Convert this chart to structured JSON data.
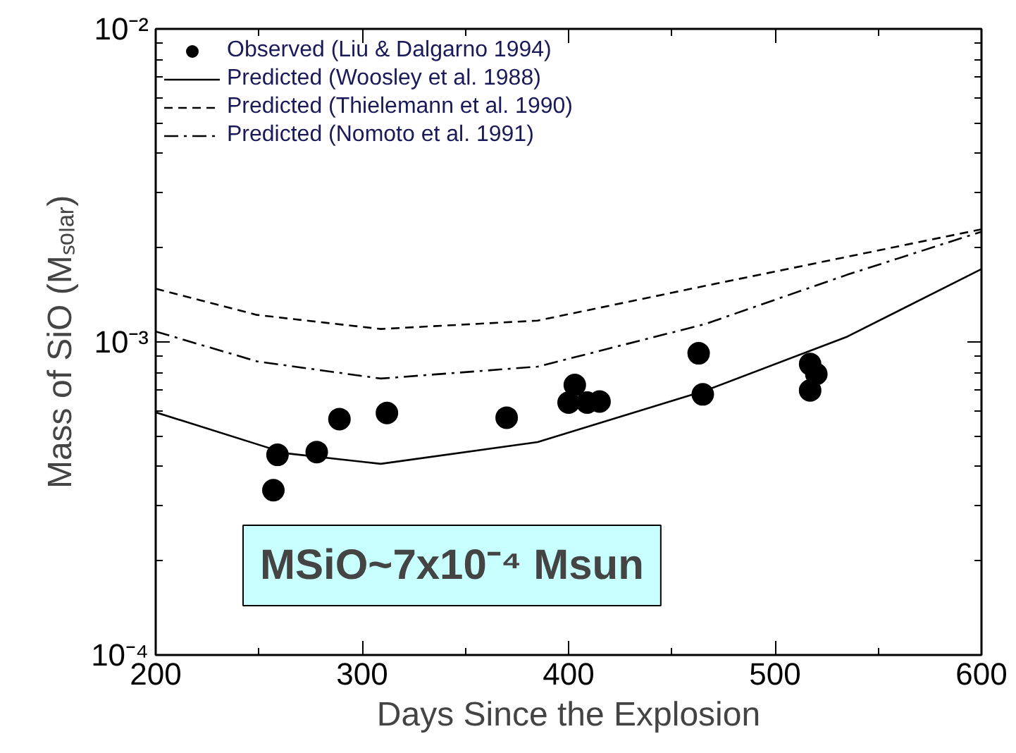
{
  "chart_data": {
    "type": "line",
    "xlabel": "Days Since the Explosion",
    "ylabel": "Mass of SiO (Mₛₒₗₐᵣ)",
    "log": "y",
    "grid": false,
    "legend": "top left",
    "xlim": [
      200,
      600
    ],
    "xticks": [
      200,
      300,
      400,
      500,
      600
    ],
    "ylim": [
      0.0001,
      0.01
    ],
    "yticks": [
      {
        "value": 0.0001,
        "label": "10⁻⁴"
      },
      {
        "value": 0.001,
        "label": "10⁻³"
      },
      {
        "value": 0.01,
        "label": "10⁻²"
      }
    ],
    "annotations": [
      "MSiO~7x10⁻⁴ Msun"
    ],
    "series": [
      {
        "name": "Observed (Liu & Dalgarno 1994)",
        "type": "scatter",
        "marker": "circle",
        "color": "#000000",
        "x": [
          257,
          259,
          278,
          289,
          312,
          370,
          400,
          403,
          409,
          415,
          463,
          465,
          517,
          520,
          517
        ],
        "values": [
          0.000336,
          0.000436,
          0.000445,
          0.000567,
          0.000593,
          0.000573,
          0.00064,
          0.000729,
          0.00064,
          0.000645,
          0.00092,
          0.00068,
          0.00085,
          0.00079,
          0.0007
        ]
      },
      {
        "name": "Predicted (Woosley et al. 1988)",
        "line_style": "solid",
        "color": "#000000",
        "x": [
          200,
          263,
          309,
          385,
          466,
          535,
          600
        ],
        "values": [
          0.000596,
          0.000441,
          0.000408,
          0.000479,
          0.000698,
          0.00104,
          0.00171
        ]
      },
      {
        "name": "Predicted (Thielemann et al. 1990)",
        "line_style": "dashed",
        "color": "#000000",
        "x": [
          200,
          249,
          309,
          385,
          466,
          600
        ],
        "values": [
          0.00148,
          0.00122,
          0.0011,
          0.00117,
          0.00151,
          0.00229
        ]
      },
      {
        "name": "Predicted (Nomoto et al. 1991)",
        "line_style": "dashdot",
        "color": "#000000",
        "x": [
          200,
          249,
          309,
          385,
          466,
          535,
          600
        ],
        "values": [
          0.00108,
          0.000867,
          0.000764,
          0.000834,
          0.00114,
          0.00164,
          0.00225
        ]
      }
    ]
  }
}
